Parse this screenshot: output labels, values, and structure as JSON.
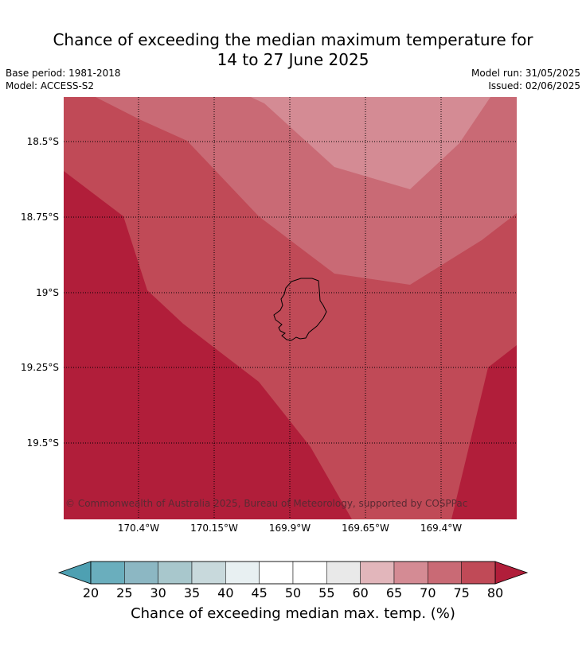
{
  "title_line1": "Chance of exceeding the median maximum temperature for",
  "title_line2": "14 to 27 June 2025",
  "meta": {
    "base_period": "Base period: 1981-2018",
    "model": "Model: ACCESS-S2",
    "model_run": "Model run: 31/05/2025",
    "issued": "Issued: 02/06/2025"
  },
  "map": {
    "lat_labels": [
      "18.5°S",
      "18.75°S",
      "19°S",
      "19.25°S",
      "19.5°S"
    ],
    "lon_labels": [
      "170.4°W",
      "170.15°W",
      "169.9°W",
      "169.65°W",
      "169.4°W"
    ],
    "copyright": "© Commonwealth of Australia 2025, Bureau of Meteorology, supported by COSPPac",
    "bands": [
      {
        "range": "65-70",
        "color": "#d48b94"
      },
      {
        "range": "70-75",
        "color": "#c96a75"
      },
      {
        "range": "75-80",
        "color": "#c04a57"
      },
      {
        "range": ">80",
        "color": "#b11e3a"
      }
    ]
  },
  "colorbar": {
    "ticks": [
      "20",
      "25",
      "30",
      "35",
      "40",
      "45",
      "50",
      "55",
      "60",
      "65",
      "70",
      "75",
      "80"
    ],
    "label": "Chance of exceeding median max. temp. (%)",
    "under_color": "#4ea0b2",
    "over_color": "#b11e3a",
    "colors": [
      "#6aaebd",
      "#8cb7c3",
      "#a8c7cc",
      "#c8d9dc",
      "#e8f0f2",
      "#ffffff",
      "#ffffff",
      "#e9e9e9",
      "#e2b6bb",
      "#d48b94",
      "#c96a75",
      "#c04a57"
    ]
  }
}
